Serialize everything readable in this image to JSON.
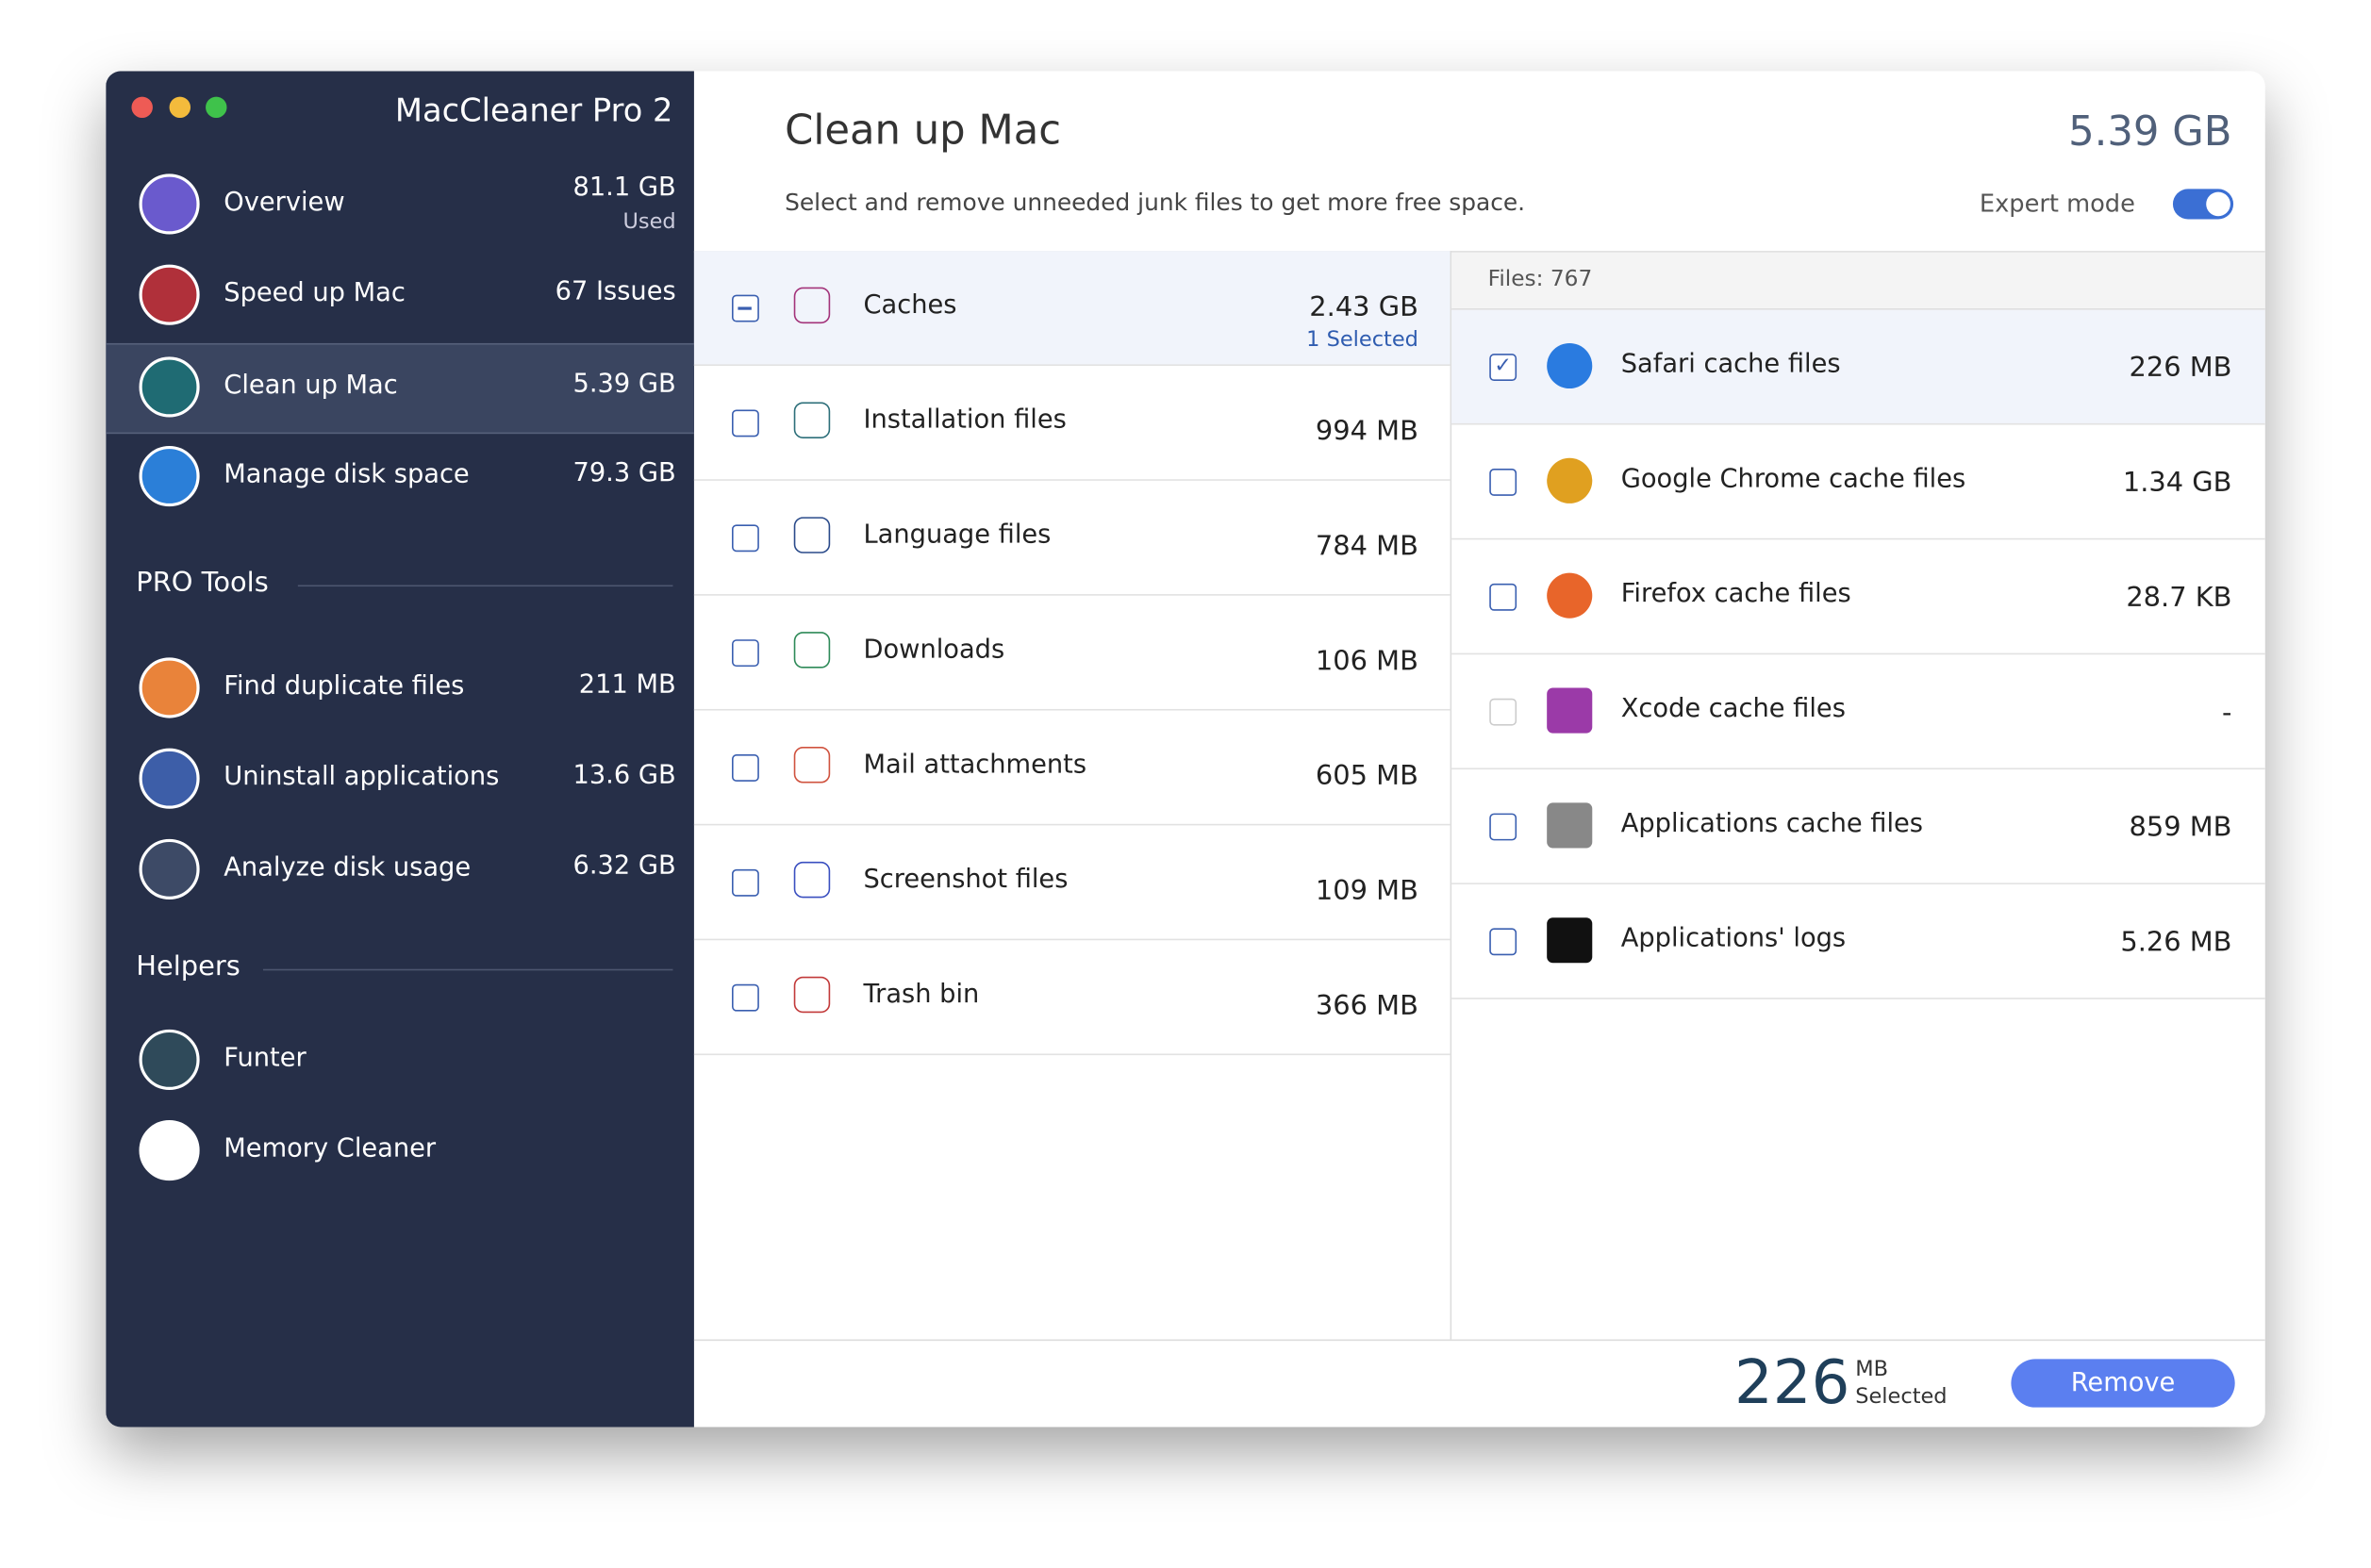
{
  "window": {
    "app_title": "MacCleaner Pro 2"
  },
  "sidebar": {
    "items": [
      {
        "label": "Overview",
        "value": "81.1 GB",
        "sub": "Used"
      },
      {
        "label": "Speed up Mac",
        "value": "67 Issues"
      },
      {
        "label": "Clean up Mac",
        "value": "5.39 GB",
        "active": true
      },
      {
        "label": "Manage disk space",
        "value": "79.3 GB"
      }
    ],
    "pro_tools": {
      "title": "PRO Tools",
      "items": [
        {
          "label": "Find duplicate files",
          "value": "211 MB"
        },
        {
          "label": "Uninstall applications",
          "value": "13.6 GB"
        },
        {
          "label": "Analyze disk usage",
          "value": "6.32 GB"
        }
      ]
    },
    "helpers": {
      "title": "Helpers",
      "items": [
        {
          "label": "Funter"
        },
        {
          "label": "Memory Cleaner"
        }
      ]
    }
  },
  "header": {
    "title": "Clean up Mac",
    "total": "5.39 GB",
    "subtitle": "Select and remove unneeded junk files to get more free space.",
    "expert_mode": "Expert mode"
  },
  "categories": [
    {
      "label": "Caches",
      "size": "2.43 GB",
      "selected": "1 Selected",
      "state": "partial"
    },
    {
      "label": "Installation files",
      "size": "994 MB"
    },
    {
      "label": "Language files",
      "size": "784 MB"
    },
    {
      "label": "Downloads",
      "size": "106 MB"
    },
    {
      "label": "Mail attachments",
      "size": "605 MB"
    },
    {
      "label": "Screenshot files",
      "size": "109 MB"
    },
    {
      "label": "Trash bin",
      "size": "366 MB"
    }
  ],
  "files": {
    "count_label": "Files: 767",
    "items": [
      {
        "label": "Safari cache files",
        "size": "226 MB",
        "checked": true
      },
      {
        "label": "Google Chrome cache files",
        "size": "1.34 GB"
      },
      {
        "label": "Firefox cache files",
        "size": "28.7 KB"
      },
      {
        "label": "Xcode cache files",
        "size": "-",
        "disabled": true
      },
      {
        "label": "Applications cache files",
        "size": "859 MB"
      },
      {
        "label": "Applications' logs",
        "size": "5.26 MB"
      }
    ]
  },
  "footer": {
    "amount": "226",
    "unit": "MB",
    "selected_label": "Selected",
    "button": "Remove"
  }
}
